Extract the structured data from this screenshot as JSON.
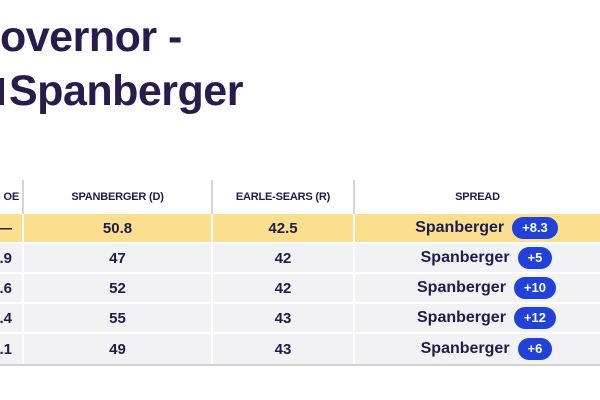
{
  "page": {
    "title_line1": "overnor -",
    "title_line2": "Spanberger"
  },
  "colors": {
    "title_text": "#2a1b4d",
    "table_text": "#1c1c4e",
    "highlight_row_yellow": "#fbdf8e",
    "spread_badge_blue": "#2141d9",
    "spread_badge_text": "#ffffff",
    "row_gray": "#f2f2f4"
  },
  "table": {
    "columns": [
      {
        "label": "OE"
      },
      {
        "label": "SPANBERGER (D)"
      },
      {
        "label": "EARLE-SEARS (R)"
      },
      {
        "label": "SPREAD"
      }
    ],
    "rows": [
      {
        "moe": "—",
        "spanberger": "50.8",
        "earle_sears": "42.5",
        "spread_label": "Spanberger",
        "spread_value": "+8.3",
        "highlighted": true
      },
      {
        "moe": ".9",
        "spanberger": "47",
        "earle_sears": "42",
        "spread_label": "Spanberger",
        "spread_value": "+5",
        "highlighted": false
      },
      {
        "moe": ".6",
        "spanberger": "52",
        "earle_sears": "42",
        "spread_label": "Spanberger",
        "spread_value": "+10",
        "highlighted": false
      },
      {
        "moe": ".4",
        "spanberger": "55",
        "earle_sears": "43",
        "spread_label": "Spanberger",
        "spread_value": "+12",
        "highlighted": false
      },
      {
        "moe": ".1",
        "spanberger": "49",
        "earle_sears": "43",
        "spread_label": "Spanberger",
        "spread_value": "+6",
        "highlighted": false
      }
    ]
  }
}
